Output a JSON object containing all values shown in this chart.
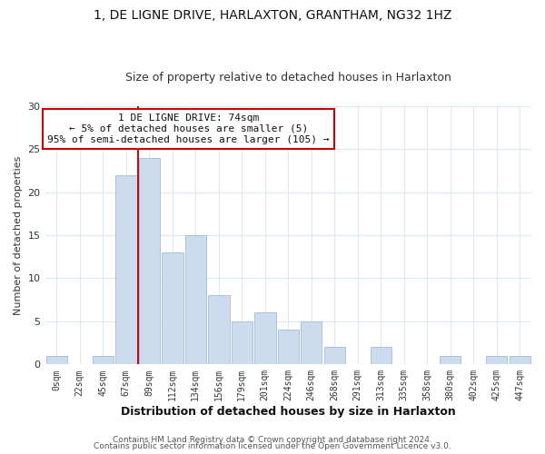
{
  "title1": "1, DE LIGNE DRIVE, HARLAXTON, GRANTHAM, NG32 1HZ",
  "title2": "Size of property relative to detached houses in Harlaxton",
  "xlabel": "Distribution of detached houses by size in Harlaxton",
  "ylabel": "Number of detached properties",
  "bar_labels": [
    "0sqm",
    "22sqm",
    "45sqm",
    "67sqm",
    "89sqm",
    "112sqm",
    "134sqm",
    "156sqm",
    "179sqm",
    "201sqm",
    "224sqm",
    "246sqm",
    "268sqm",
    "291sqm",
    "313sqm",
    "335sqm",
    "358sqm",
    "380sqm",
    "402sqm",
    "425sqm",
    "447sqm"
  ],
  "bar_values": [
    1,
    0,
    1,
    22,
    24,
    13,
    15,
    8,
    5,
    6,
    4,
    5,
    2,
    0,
    2,
    0,
    0,
    1,
    0,
    1,
    1
  ],
  "bar_color": "#ccdcee",
  "bar_edge_color": "#a8c4de",
  "vline_x": 3.5,
  "vline_color": "#cc0000",
  "ylim": [
    0,
    30
  ],
  "yticks": [
    0,
    5,
    10,
    15,
    20,
    25,
    30
  ],
  "annotation_title": "1 DE LIGNE DRIVE: 74sqm",
  "annotation_line1": "← 5% of detached houses are smaller (5)",
  "annotation_line2": "95% of semi-detached houses are larger (105) →",
  "annotation_box_color": "#ffffff",
  "annotation_box_edge": "#cc0000",
  "footer1": "Contains HM Land Registry data © Crown copyright and database right 2024.",
  "footer2": "Contains public sector information licensed under the Open Government Licence v3.0.",
  "background_color": "#ffffff",
  "grid_color": "#dce8f4"
}
